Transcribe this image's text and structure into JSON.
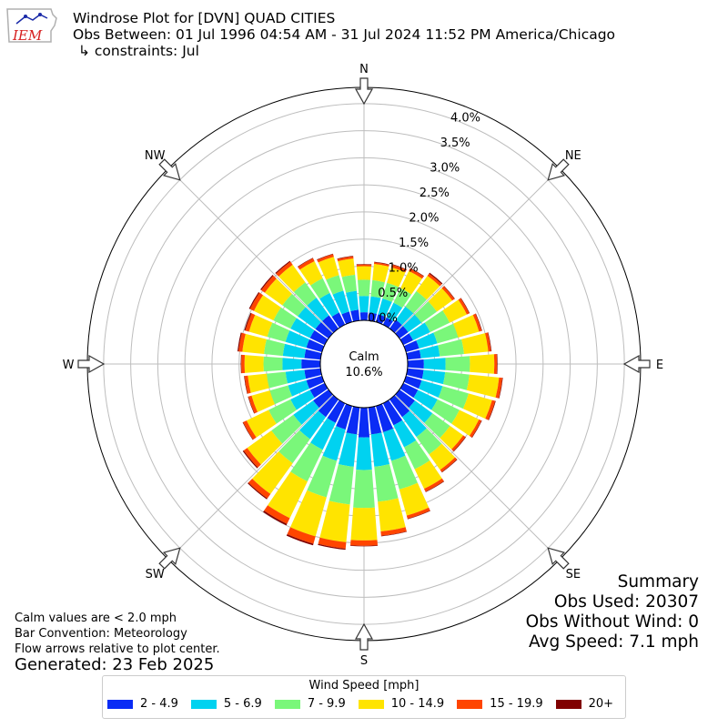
{
  "header": {
    "title": "Windrose Plot for [DVN] QUAD CITIES",
    "obs_between": "Obs Between: 01 Jul 1996 04:54 AM - 31 Jul 2024 11:52 PM America/Chicago",
    "constraints": "↳ constraints: Jul"
  },
  "logo": {
    "text": "IEM"
  },
  "footer": {
    "calm_note": "Calm values are < 2.0 mph",
    "bar_convention": "Bar Convention: Meteorology",
    "flow_note": "Flow arrows relative to plot center.",
    "generated": "Generated: 23 Feb 2025"
  },
  "summary": {
    "title": "Summary",
    "obs_used": "Obs Used: 20307",
    "obs_without_wind": "Obs Without Wind: 0",
    "avg_speed": "Avg Speed: 7.1 mph"
  },
  "legend": {
    "title": "Wind Speed [mph]",
    "items": [
      {
        "label": "2 - 4.9",
        "color": "#0a2cf5"
      },
      {
        "label": "5 - 6.9",
        "color": "#00d2f0"
      },
      {
        "label": "7 - 9.9",
        "color": "#7af77a"
      },
      {
        "label": "10 - 14.9",
        "color": "#ffe400"
      },
      {
        "label": "15 - 19.9",
        "color": "#ff4500"
      },
      {
        "label": "20+",
        "color": "#800000"
      }
    ]
  },
  "chart_data": {
    "type": "windrose",
    "center_label": "Calm",
    "calm_value": "10.6%",
    "calm_percent": 10.6,
    "radial_unit": "%",
    "radial_ticks": [
      0.0,
      0.5,
      1.0,
      1.5,
      2.0,
      2.5,
      3.0,
      3.5,
      4.0
    ],
    "radial_max": 4.3,
    "direction_labels": [
      "N",
      "NE",
      "E",
      "SE",
      "S",
      "SW",
      "W",
      "NW"
    ],
    "directions_deg": [
      0,
      10,
      20,
      30,
      40,
      50,
      60,
      70,
      80,
      90,
      100,
      110,
      120,
      130,
      140,
      150,
      160,
      170,
      180,
      190,
      200,
      210,
      220,
      230,
      240,
      250,
      260,
      270,
      280,
      290,
      300,
      310,
      320,
      330,
      340,
      350
    ],
    "series": [
      {
        "name": "2 - 4.9",
        "color": "#0a2cf5",
        "values": [
          0.15,
          0.15,
          0.15,
          0.15,
          0.2,
          0.2,
          0.2,
          0.25,
          0.25,
          0.3,
          0.3,
          0.3,
          0.3,
          0.35,
          0.4,
          0.45,
          0.5,
          0.5,
          0.55,
          0.5,
          0.45,
          0.4,
          0.4,
          0.35,
          0.3,
          0.3,
          0.3,
          0.35,
          0.3,
          0.3,
          0.3,
          0.3,
          0.3,
          0.25,
          0.2,
          0.2
        ]
      },
      {
        "name": "5 - 6.9",
        "color": "#00d2f0",
        "values": [
          0.3,
          0.3,
          0.3,
          0.3,
          0.3,
          0.3,
          0.35,
          0.35,
          0.35,
          0.4,
          0.4,
          0.4,
          0.4,
          0.4,
          0.45,
          0.45,
          0.55,
          0.6,
          0.6,
          0.6,
          0.6,
          0.55,
          0.5,
          0.45,
          0.4,
          0.35,
          0.35,
          0.35,
          0.4,
          0.4,
          0.4,
          0.4,
          0.4,
          0.4,
          0.4,
          0.35
        ]
      },
      {
        "name": "7 - 9.9",
        "color": "#7af77a",
        "values": [
          0.3,
          0.3,
          0.3,
          0.3,
          0.35,
          0.35,
          0.4,
          0.4,
          0.45,
          0.45,
          0.45,
          0.5,
          0.45,
          0.4,
          0.4,
          0.45,
          0.55,
          0.65,
          0.7,
          0.7,
          0.7,
          0.65,
          0.55,
          0.5,
          0.45,
          0.35,
          0.35,
          0.35,
          0.35,
          0.35,
          0.35,
          0.35,
          0.35,
          0.3,
          0.3,
          0.3
        ]
      },
      {
        "name": "10 - 14.9",
        "color": "#ffe400",
        "values": [
          0.25,
          0.3,
          0.3,
          0.35,
          0.35,
          0.35,
          0.35,
          0.4,
          0.45,
          0.45,
          0.55,
          0.45,
          0.4,
          0.3,
          0.35,
          0.4,
          0.5,
          0.55,
          0.6,
          0.7,
          0.75,
          0.75,
          0.7,
          0.55,
          0.45,
          0.35,
          0.35,
          0.35,
          0.4,
          0.35,
          0.4,
          0.4,
          0.4,
          0.35,
          0.35,
          0.3
        ]
      },
      {
        "name": "15 - 19.9",
        "color": "#ff4500",
        "values": [
          0.03,
          0.03,
          0.05,
          0.05,
          0.05,
          0.05,
          0.05,
          0.05,
          0.05,
          0.05,
          0.06,
          0.06,
          0.05,
          0.05,
          0.05,
          0.06,
          0.06,
          0.08,
          0.1,
          0.12,
          0.14,
          0.12,
          0.1,
          0.08,
          0.07,
          0.06,
          0.06,
          0.06,
          0.07,
          0.07,
          0.08,
          0.08,
          0.07,
          0.06,
          0.05,
          0.04
        ]
      },
      {
        "name": "20+",
        "color": "#800000",
        "values": [
          0.01,
          0.01,
          0.01,
          0.01,
          0.02,
          0.01,
          0.01,
          0.01,
          0.01,
          0.01,
          0.01,
          0.01,
          0.01,
          0.01,
          0.01,
          0.01,
          0.01,
          0.01,
          0.01,
          0.02,
          0.03,
          0.03,
          0.02,
          0.02,
          0.01,
          0.01,
          0.01,
          0.01,
          0.02,
          0.02,
          0.02,
          0.02,
          0.02,
          0.01,
          0.01,
          0.01
        ]
      }
    ]
  }
}
